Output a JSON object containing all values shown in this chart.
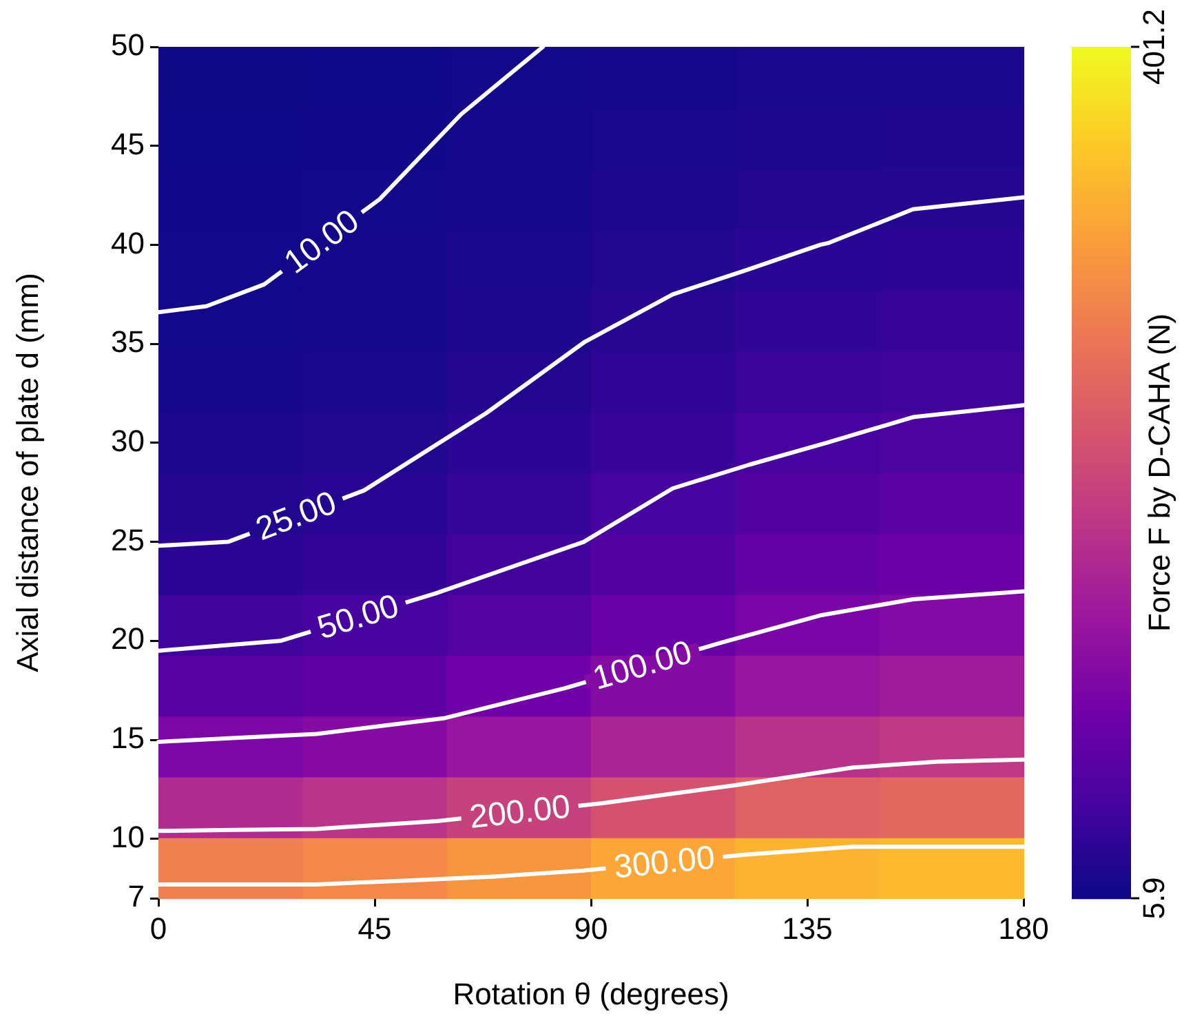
{
  "chart_data": {
    "type": "heatmap",
    "xlabel": "Rotation θ (degrees)",
    "ylabel": "Axial distance of plate d (mm)",
    "clabel": "Force F by D-CAHA (N)",
    "xlim": [
      0,
      180
    ],
    "ylim": [
      7,
      50
    ],
    "xticks": [
      0,
      45,
      90,
      135,
      180
    ],
    "yticks": [
      7,
      10,
      15,
      20,
      25,
      30,
      35,
      40,
      45,
      50
    ],
    "clim": [
      5.9,
      401.2
    ],
    "cticks": [
      5.9,
      401.2
    ],
    "cells": [
      [
        6.5,
        7.6,
        9.7,
        12.3,
        15.1,
        16.5
      ],
      [
        7.3,
        8.7,
        11.3,
        14.8,
        18.5,
        20.2
      ],
      [
        8.3,
        9.9,
        13.3,
        17.7,
        22.3,
        24.7
      ],
      [
        9.4,
        11.5,
        15.7,
        21.4,
        27.5,
        30.6
      ],
      [
        10.9,
        13.4,
        18.5,
        25.6,
        33.5,
        37.5
      ],
      [
        13.8,
        16.8,
        23,
        31,
        41,
        45
      ],
      [
        17.5,
        21,
        29,
        39,
        50,
        56
      ],
      [
        22,
        27,
        36,
        49,
        63,
        70
      ],
      [
        29,
        35,
        47,
        63,
        79,
        88
      ],
      [
        44,
        51,
        65,
        84,
        102,
        111
      ],
      [
        66,
        75,
        92,
        113,
        133,
        143
      ],
      [
        104,
        114,
        133,
        155,
        175,
        185
      ],
      [
        166,
        177,
        197,
        219,
        238,
        247
      ],
      [
        277,
        287,
        303,
        320,
        334,
        340
      ]
    ],
    "series": [
      {
        "type": "line",
        "name": "10.00",
        "color": "#ffffff",
        "x": [
          0,
          10,
          22,
          46,
          63,
          80
        ],
        "values": [
          36.6,
          36.9,
          38.0,
          42.3,
          46.6,
          50
        ]
      },
      {
        "type": "line",
        "name": "25.00",
        "color": "#ffffff",
        "x": [
          0,
          14.5,
          42.8,
          68.2,
          88.7,
          107,
          122,
          137.7,
          139.5,
          157,
          180
        ],
        "values": [
          24.8,
          25.0,
          27.6,
          31.5,
          35.1,
          37.5,
          38.7,
          40.0,
          40.1,
          41.8,
          42.4
        ]
      },
      {
        "type": "line",
        "name": "50.00",
        "color": "#ffffff",
        "x": [
          0,
          25.4,
          57.7,
          88.5,
          107,
          123,
          139,
          157,
          180
        ],
        "values": [
          19.5,
          20.0,
          22.4,
          25.0,
          27.7,
          28.9,
          30.0,
          31.3,
          31.9
        ]
      },
      {
        "type": "line",
        "name": "100.00",
        "color": "#ffffff",
        "x": [
          0,
          16,
          32.9,
          59.6,
          84.4,
          117,
          138,
          157,
          180
        ],
        "values": [
          14.9,
          15.1,
          15.3,
          16.1,
          17.6,
          19.9,
          21.3,
          22.1,
          22.5
        ]
      },
      {
        "type": "line",
        "name": "200.00",
        "color": "#ffffff",
        "x": [
          0,
          16,
          32.9,
          58,
          92.4,
          119.7,
          144.5,
          162,
          180
        ],
        "values": [
          10.4,
          10.45,
          10.5,
          10.9,
          11.8,
          12.7,
          13.6,
          13.9,
          14.0
        ]
      },
      {
        "type": "line",
        "name": "300.00",
        "color": "#ffffff",
        "x": [
          0,
          16,
          32.9,
          52,
          70,
          88.5,
          122,
          144.5,
          162,
          180
        ],
        "values": [
          7.7,
          7.7,
          7.7,
          7.9,
          8.1,
          8.4,
          9.2,
          9.6,
          9.6,
          9.6
        ]
      }
    ],
    "grid": false,
    "legend": false,
    "marker": "none",
    "line_style": "solid"
  }
}
